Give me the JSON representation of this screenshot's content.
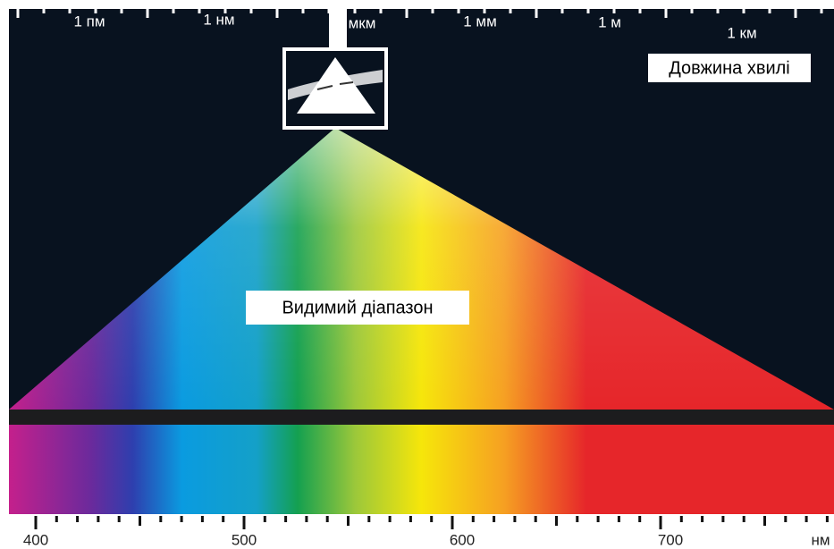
{
  "top_scale": {
    "labels": [
      "1 пм",
      "1 нм",
      "мкм",
      "1 мм",
      "1 м",
      "1 км"
    ]
  },
  "wavelength_label": "Довжина хвилі",
  "visible_label": "Видимий діапазон",
  "bottom_scale": {
    "labels": [
      "400",
      "500",
      "600",
      "700"
    ],
    "unit": "нм"
  }
}
